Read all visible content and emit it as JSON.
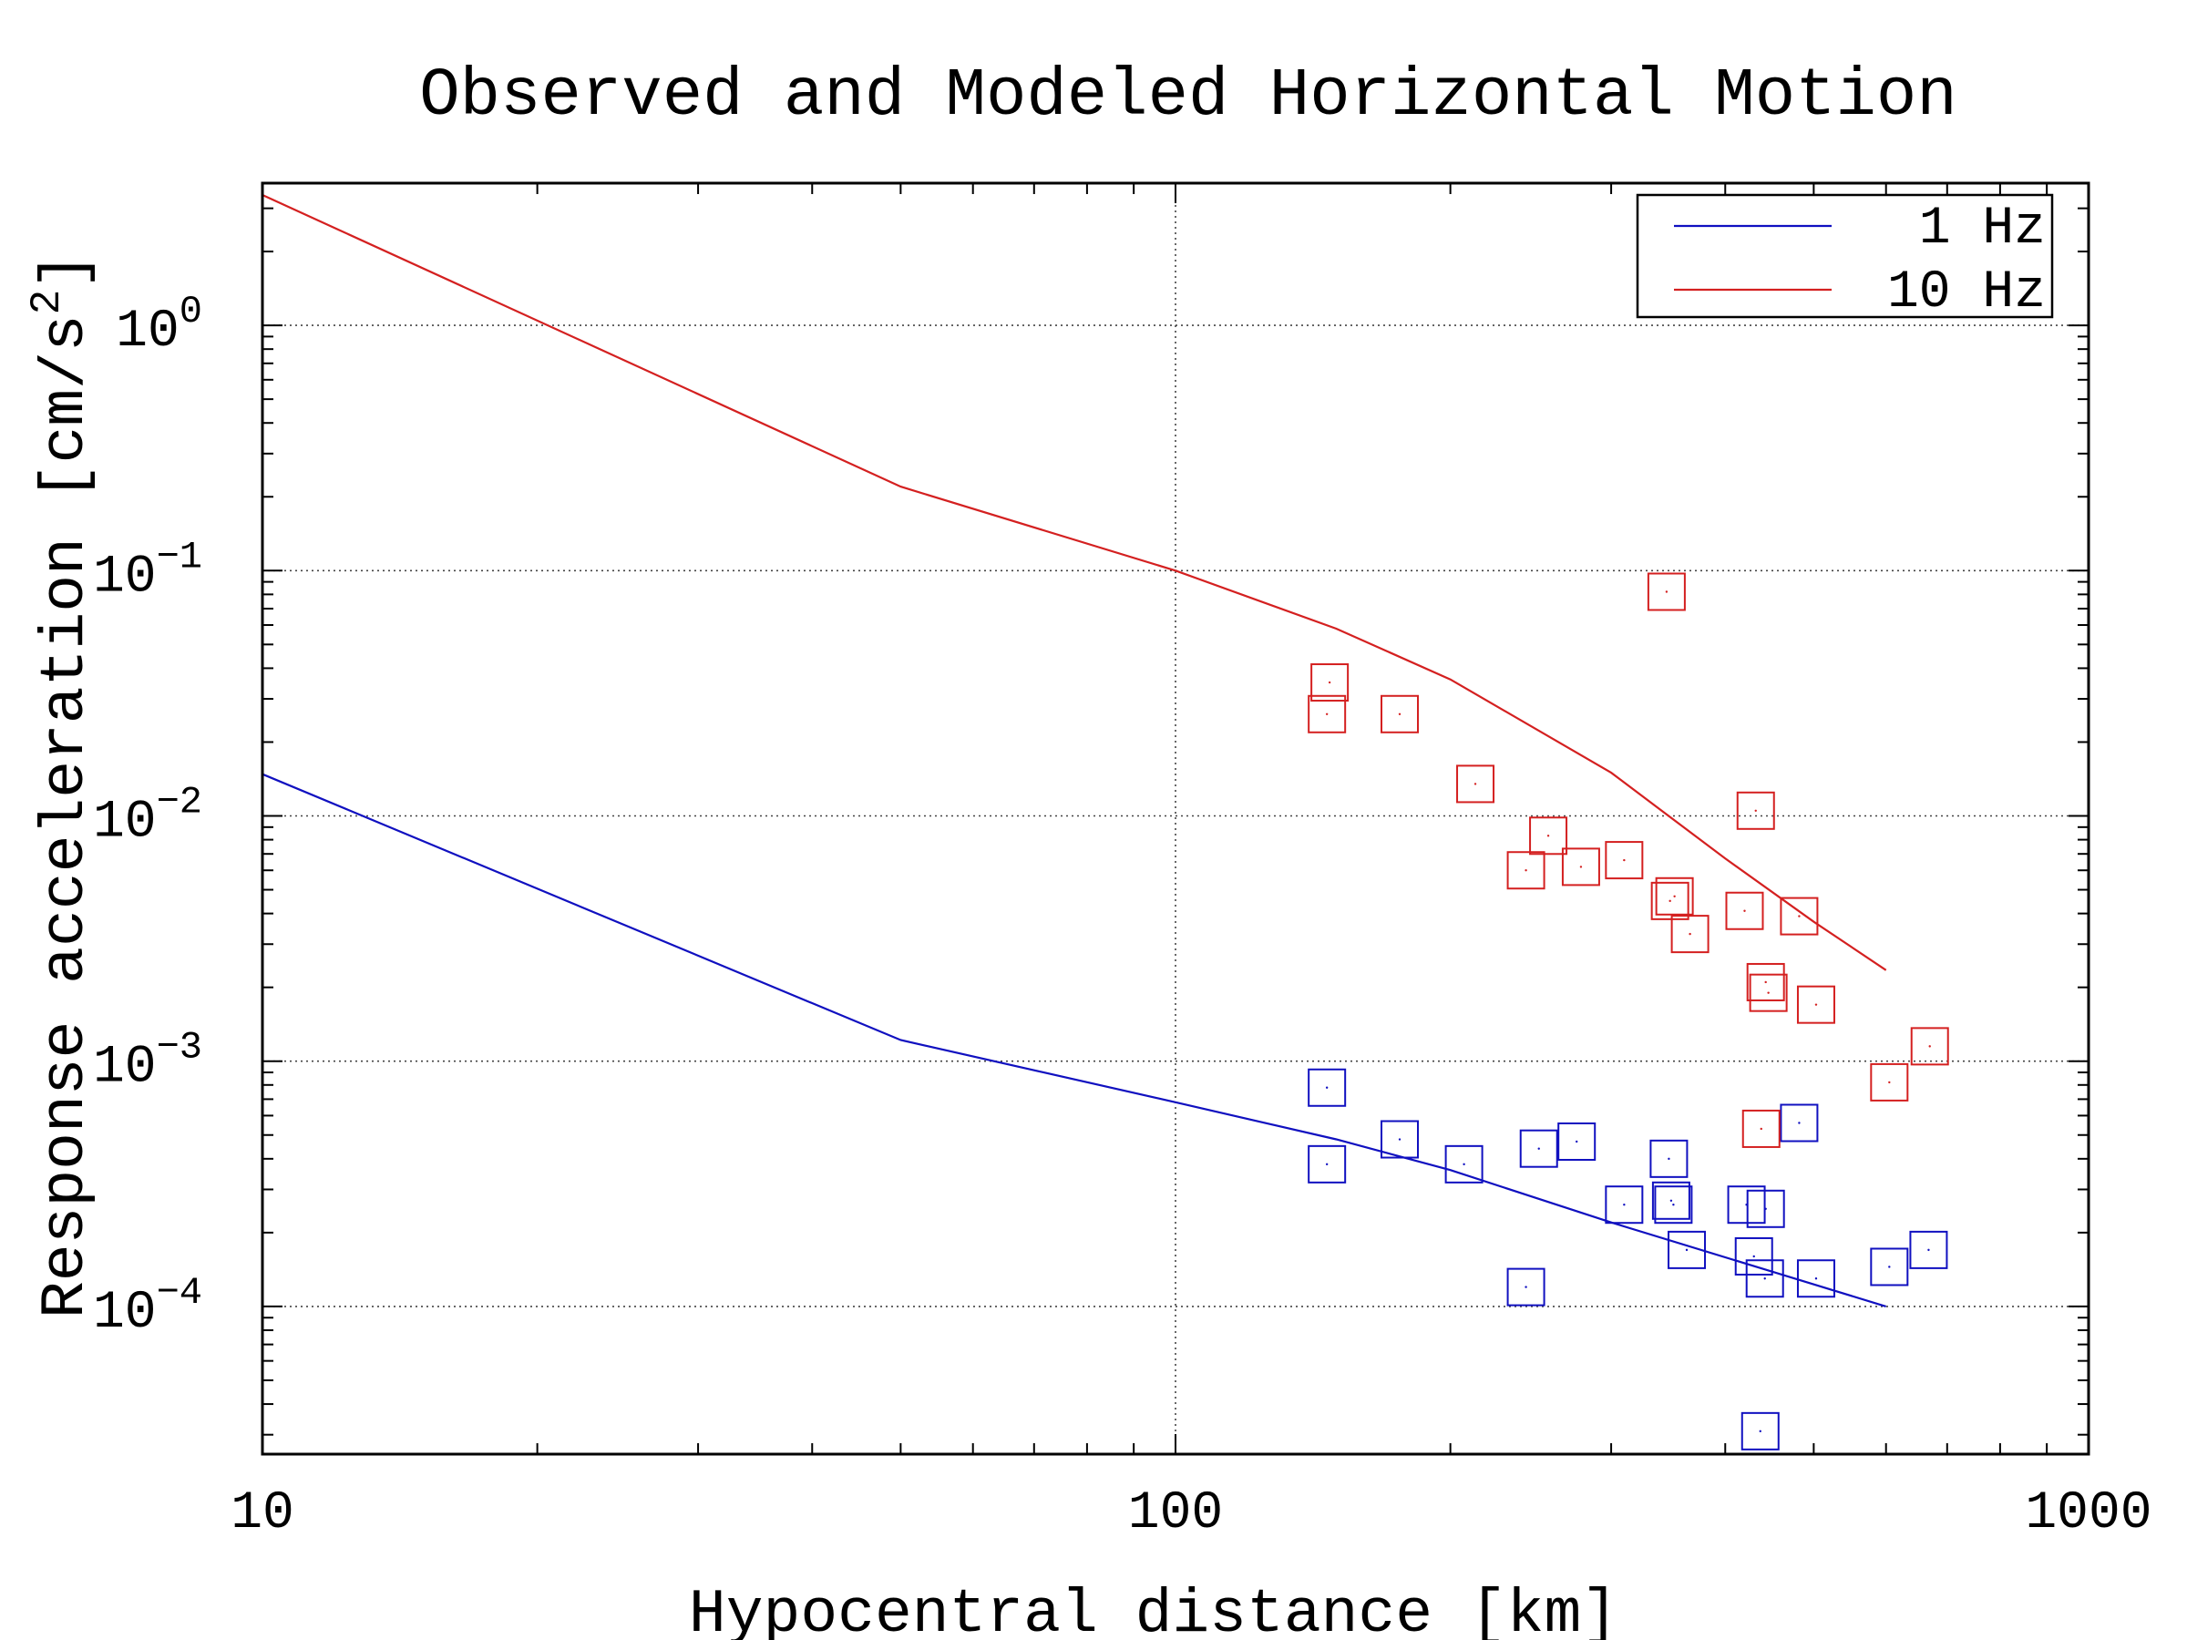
{
  "chart_data": {
    "type": "scatter",
    "title": "Observed and Modeled Horizontal Motion",
    "xlabel": "Hypocentral distance [km]",
    "ylabel": "Response acceleration [cm/s",
    "ylabel_superscript": "2",
    "ylabel_suffix": "]",
    "xscale": "log",
    "yscale": "log",
    "xlim": [
      10,
      1000
    ],
    "ylim": [
      2.5e-05,
      3.8
    ],
    "x_ticks": [
      {
        "value": 10,
        "label": "10"
      },
      {
        "value": 100,
        "label": "100"
      },
      {
        "value": 1000,
        "label": "1000"
      }
    ],
    "y_ticks": [
      {
        "value": 1,
        "base": "10",
        "exp": "0"
      },
      {
        "value": 0.1,
        "base": "10",
        "exp": "−1"
      },
      {
        "value": 0.01,
        "base": "10",
        "exp": "−2"
      },
      {
        "value": 0.001,
        "base": "10",
        "exp": "−3"
      },
      {
        "value": 0.0001,
        "base": "10",
        "exp": "−4"
      }
    ],
    "grid": true,
    "legend_position": "top-right",
    "colors": {
      "blue": "#1010c0",
      "red": "#d42020",
      "grid": "#444444",
      "axis": "#000000"
    },
    "model_lines": [
      {
        "name": "1 Hz",
        "color": "#1010c0",
        "x": [
          10,
          50,
          100,
          150,
          200,
          300,
          600
        ],
        "y": [
          0.0148,
          0.00122,
          0.00068,
          0.00048,
          0.00036,
          0.00022,
          0.0001
        ]
      },
      {
        "name": "10 Hz",
        "color": "#d42020",
        "x": [
          10,
          50,
          100,
          150,
          200,
          300,
          400,
          500,
          600
        ],
        "y": [
          3.4,
          0.22,
          0.1,
          0.058,
          0.036,
          0.015,
          0.0067,
          0.0037,
          0.00235
        ]
      }
    ],
    "observed_series": [
      {
        "color": "#1010c0",
        "points": [
          {
            "x": 146.5,
            "y": 0.00078
          },
          {
            "x": 146.5,
            "y": 0.00038
          },
          {
            "x": 176,
            "y": 0.00048
          },
          {
            "x": 207,
            "y": 0.00038
          },
          {
            "x": 242,
            "y": 0.00012
          },
          {
            "x": 250,
            "y": 0.00044
          },
          {
            "x": 275,
            "y": 0.00047
          },
          {
            "x": 310,
            "y": 0.00026
          },
          {
            "x": 347,
            "y": 0.0004
          },
          {
            "x": 349,
            "y": 0.00027
          },
          {
            "x": 351,
            "y": 0.00026
          },
          {
            "x": 363,
            "y": 0.00017
          },
          {
            "x": 422,
            "y": 0.00026
          },
          {
            "x": 430,
            "y": 0.00016
          },
          {
            "x": 437,
            "y": 3.1e-05
          },
          {
            "x": 442,
            "y": 0.00013
          },
          {
            "x": 443,
            "y": 0.00025
          },
          {
            "x": 482,
            "y": 0.00056
          },
          {
            "x": 503,
            "y": 0.00013
          },
          {
            "x": 605,
            "y": 0.000145
          },
          {
            "x": 668,
            "y": 0.00017
          }
        ]
      },
      {
        "color": "#d42020",
        "points": [
          {
            "x": 147.5,
            "y": 0.035
          },
          {
            "x": 146.5,
            "y": 0.026
          },
          {
            "x": 176,
            "y": 0.026
          },
          {
            "x": 213,
            "y": 0.0135
          },
          {
            "x": 242,
            "y": 0.006
          },
          {
            "x": 256,
            "y": 0.0083
          },
          {
            "x": 278,
            "y": 0.0062
          },
          {
            "x": 310,
            "y": 0.0066
          },
          {
            "x": 345,
            "y": 0.082
          },
          {
            "x": 348,
            "y": 0.0045
          },
          {
            "x": 352,
            "y": 0.0047
          },
          {
            "x": 366,
            "y": 0.0033
          },
          {
            "x": 420,
            "y": 0.0041
          },
          {
            "x": 432,
            "y": 0.0105
          },
          {
            "x": 438,
            "y": 0.00053
          },
          {
            "x": 443,
            "y": 0.0021
          },
          {
            "x": 446,
            "y": 0.0019
          },
          {
            "x": 482,
            "y": 0.0039
          },
          {
            "x": 503,
            "y": 0.0017
          },
          {
            "x": 605,
            "y": 0.00082
          },
          {
            "x": 670,
            "y": 0.00115
          }
        ]
      }
    ]
  }
}
